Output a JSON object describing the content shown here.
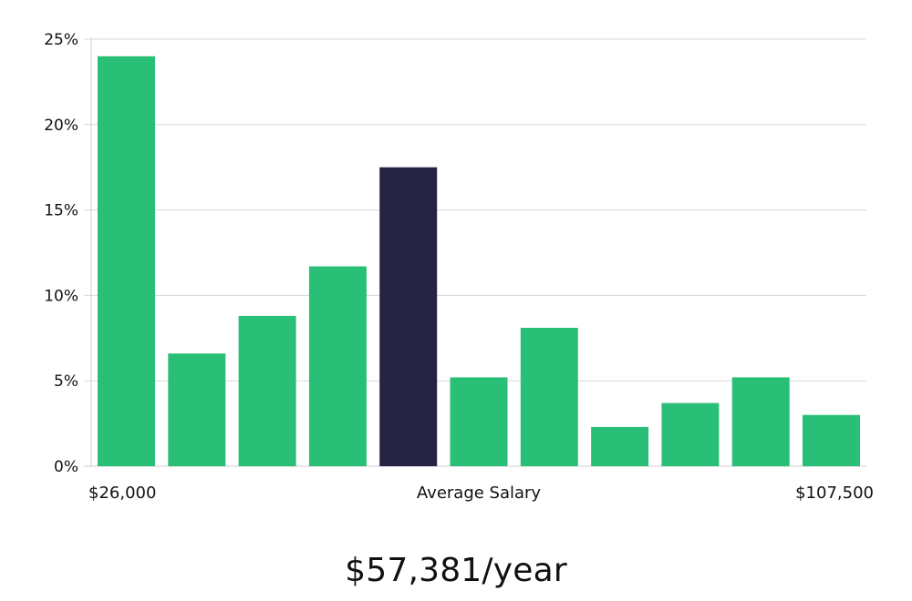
{
  "chart_data": {
    "type": "bar",
    "values": [
      24,
      6.6,
      8.8,
      11.7,
      17.5,
      5.2,
      8.1,
      2.3,
      3.7,
      5.2,
      3.0
    ],
    "highlight_index": 4,
    "ylim": [
      0,
      25
    ],
    "y_ticks": [
      0,
      5,
      10,
      15,
      20,
      25
    ],
    "y_tick_labels": [
      "0%",
      "5%",
      "10%",
      "15%",
      "20%",
      "25%"
    ],
    "x_labels": {
      "min": "$26,000",
      "middle": "Average Salary",
      "max": "$107,500"
    },
    "grid": true,
    "colors": {
      "bar": "#2abf77",
      "highlight": "#262444",
      "grid": "#d9d9d9",
      "axis": "#cfcfcf"
    }
  },
  "summary": {
    "average_salary": "$57,381/year"
  }
}
